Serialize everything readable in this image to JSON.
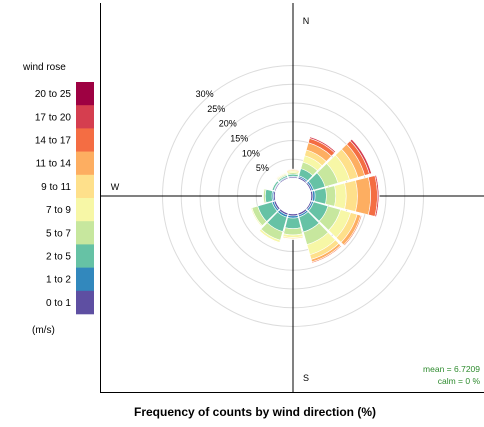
{
  "chart_data": {
    "type": "wind-rose",
    "title": "Frequency of counts by wind direction (%)",
    "legend": {
      "title": "wind rose",
      "unit": "(m/s)",
      "position": "left",
      "bins": [
        {
          "label": "20 to 25",
          "color": "#9E0142"
        },
        {
          "label": "17 to 20",
          "color": "#D53E4F"
        },
        {
          "label": "14 to 17",
          "color": "#F46D43"
        },
        {
          "label": "11 to 14",
          "color": "#FDAE61"
        },
        {
          "label": "9 to 11",
          "color": "#FEE08B"
        },
        {
          "label": "7 to 9",
          "color": "#F7F7A6"
        },
        {
          "label": "5 to 7",
          "color": "#C7E79E"
        },
        {
          "label": "2 to 5",
          "color": "#66C2A5"
        },
        {
          "label": "1 to 2",
          "color": "#3288BD"
        },
        {
          "label": "0 to 1",
          "color": "#5E4FA2"
        }
      ]
    },
    "radial_axis": {
      "unit": "%",
      "max": 30,
      "ticks": [
        {
          "value": 5,
          "label": "5%"
        },
        {
          "value": 10,
          "label": "10%"
        },
        {
          "value": 15,
          "label": "15%"
        },
        {
          "value": 20,
          "label": "20%"
        },
        {
          "value": 25,
          "label": "25%"
        },
        {
          "value": 30,
          "label": "30%"
        }
      ]
    },
    "compass_labels": {
      "north": "N",
      "west": "W",
      "south": "S"
    },
    "directions_deg": [
      0,
      30,
      60,
      90,
      120,
      150,
      180,
      210,
      240,
      270,
      300,
      330
    ],
    "series": [
      {
        "name": "0 to 1",
        "values": [
          0.3,
          0.4,
          0.4,
          0.5,
          0.4,
          0.5,
          0.5,
          0.5,
          0.5,
          0.4,
          0.3,
          0.3
        ]
      },
      {
        "name": "1 to 2",
        "values": [
          0.2,
          0.4,
          0.5,
          0.6,
          0.5,
          0.5,
          0.6,
          0.6,
          0.5,
          0.4,
          0.2,
          0.2
        ]
      },
      {
        "name": "2 to 5",
        "values": [
          0.5,
          2.0,
          3.2,
          3.0,
          4.0,
          4.2,
          2.8,
          4.0,
          4.0,
          1.8,
          0.5,
          0.4
        ]
      },
      {
        "name": "5 to 7",
        "values": [
          0.4,
          1.8,
          3.6,
          2.5,
          3.5,
          3.5,
          1.7,
          2.4,
          1.6,
          0.5,
          0.2,
          0.3
        ]
      },
      {
        "name": "7 to 9",
        "values": [
          0.4,
          1.8,
          3.2,
          2.8,
          2.8,
          2.8,
          0.7,
          0.6,
          0.3,
          0.2,
          0.1,
          0.3
        ]
      },
      {
        "name": "9 to 11",
        "values": [
          0.3,
          1.6,
          2.3,
          3.0,
          1.8,
          1.3,
          0.3,
          0.1,
          0.1,
          0.1,
          0.1,
          0.2
        ]
      },
      {
        "name": "11 to 14",
        "values": [
          0.2,
          2.0,
          1.9,
          3.5,
          1.0,
          0.7,
          0.1,
          0.1,
          0.0,
          0.0,
          0.0,
          0.1
        ]
      },
      {
        "name": "14 to 17",
        "values": [
          0.1,
          1.2,
          1.3,
          1.8,
          0.3,
          0.3,
          0.1,
          0.0,
          0.0,
          0.0,
          0.0,
          0.1
        ]
      },
      {
        "name": "17 to 20",
        "values": [
          0.0,
          0.4,
          0.6,
          0.4,
          0.1,
          0.1,
          0.0,
          0.0,
          0.0,
          0.0,
          0.0,
          0.0
        ]
      },
      {
        "name": "20 to 25",
        "values": [
          0.0,
          0.1,
          0.1,
          0.1,
          0.0,
          0.0,
          0.0,
          0.0,
          0.0,
          0.0,
          0.0,
          0.0
        ]
      }
    ],
    "stats": {
      "mean_label": "mean = 6.7209",
      "calm_label": "calm = 0 %"
    }
  }
}
